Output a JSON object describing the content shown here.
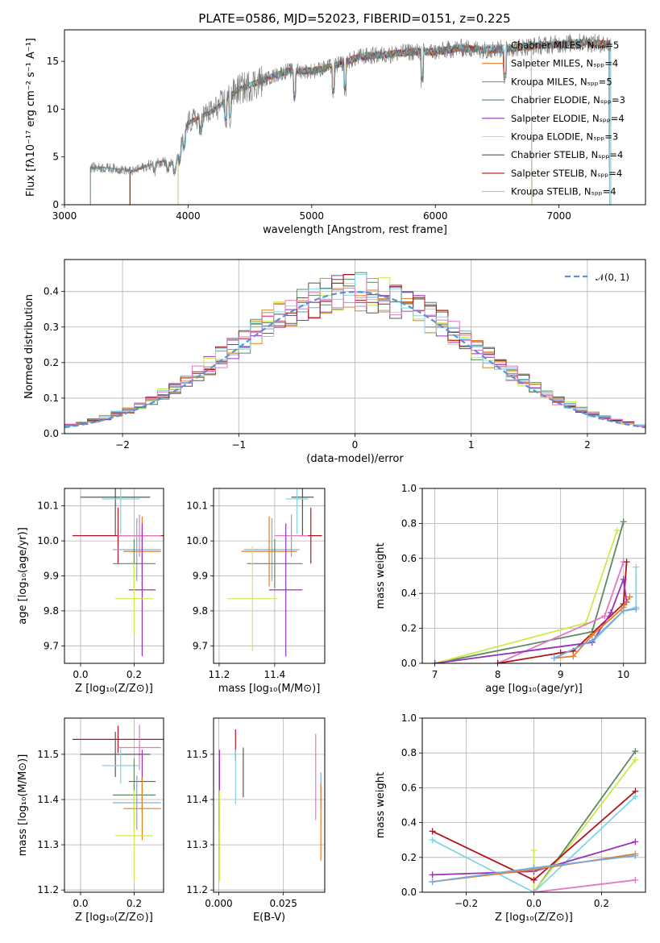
{
  "figure": {
    "title": "PLATE=0586, MJD=52023, FIBERID=0151, z=0.225"
  },
  "colors": {
    "Chabrier MILES": "#77aadd",
    "Salpeter MILES": "#e67e22",
    "Kroupa MILES": "#c8852a",
    "Chabrier ELODIE": "#5b8a63",
    "Salpeter ELODIE": "#9b30b9",
    "Kroupa ELODIE": "#cde94e",
    "Chabrier STELIB": "#555555",
    "Salpeter STELIB": "#b0151b",
    "Kroupa STELIB": "#7fd6e6",
    "extra": "#e377c2",
    "normal_curve": "#5b8fd9"
  },
  "chart_data": [
    {
      "id": "spectrum",
      "type": "line",
      "xlabel": "wavelength [Angstrom, rest frame]",
      "ylabel": "Flux [fλ10⁻¹⁷ erg cm⁻² s⁻¹ A⁻¹]",
      "xlim": [
        3000,
        7700
      ],
      "ylim": [
        0,
        18.3
      ],
      "xticks": [
        "3000",
        "4000",
        "5000",
        "6000",
        "7000"
      ],
      "yticks": [
        "0",
        "5",
        "10",
        "15"
      ],
      "grid": false,
      "legend_position": "right",
      "series": [
        {
          "name": "Chabrier MILES, Nₛₚₚ=5"
        },
        {
          "name": "Salpeter MILES, Nₛₚₚ=4"
        },
        {
          "name": "Kroupa MILES, Nₛₚₚ=5"
        },
        {
          "name": "Chabrier ELODIE, Nₛₚₚ=3"
        },
        {
          "name": "Salpeter ELODIE, Nₛₚₚ=4"
        },
        {
          "name": "Kroupa ELODIE, Nₛₚₚ=3"
        },
        {
          "name": "Chabrier STELIB, Nₛₚₚ=4"
        },
        {
          "name": "Salpeter STELIB, Nₛₚₚ=4"
        },
        {
          "name": "Kroupa STELIB, Nₛₚₚ=4"
        }
      ],
      "continuum": {
        "x": [
          3220,
          3400,
          3550,
          3700,
          3800,
          3900,
          3950,
          4000,
          4200,
          4400,
          4600,
          4800,
          5000,
          5200,
          5400,
          5600,
          5800,
          6000,
          6200,
          6400,
          6600,
          6800,
          7000,
          7200,
          7400,
          7500
        ],
        "y": [
          3.9,
          3.8,
          3.5,
          4.2,
          4.6,
          4.1,
          6.5,
          8.6,
          9.8,
          12.0,
          13.0,
          14.0,
          14.0,
          14.6,
          15.5,
          15.7,
          16.0,
          16.0,
          16.4,
          16.2,
          16.4,
          16.6,
          16.8,
          17.0,
          16.8,
          16.5
        ]
      },
      "spectrum_start": 3210,
      "spectrum_end": 7420
    },
    {
      "id": "residuals",
      "type": "line",
      "xlabel": "(data-model)/error",
      "ylabel": "Normed distribution",
      "xlim": [
        -2.5,
        2.5
      ],
      "ylim": [
        0,
        0.49
      ],
      "xticks": [
        "−2",
        "−1",
        "0",
        "1",
        "2"
      ],
      "yticks": [
        "0.0",
        "0.1",
        "0.2",
        "0.3",
        "0.4"
      ],
      "grid": true,
      "legend_position": "top-right",
      "legend": "𝒩(0, 1)",
      "bin_width": 0.1
    },
    {
      "id": "age-vs-Z",
      "type": "scatter",
      "xlabel": "Z [log₁₀(Z/Z⊙)]",
      "ylabel": "age  [log₁₀(age/yr)]",
      "xlim": [
        -0.06,
        0.31
      ],
      "ylim": [
        9.65,
        10.15
      ],
      "xticks": [
        "0.0",
        "0.2"
      ],
      "yticks": [
        "9.7",
        "9.8",
        "9.9",
        "10.0",
        "10.1"
      ],
      "grid": true,
      "points": [
        {
          "c": "Chabrier STELIB",
          "x": 0.13,
          "xe": 0.13,
          "y": 10.125,
          "ye": 0.11
        },
        {
          "c": "Kroupa STELIB",
          "x": 0.15,
          "xe": 0.07,
          "y": 10.12,
          "ye": 0.1
        },
        {
          "c": "Salpeter STELIB",
          "x": 0.14,
          "xe": 0.17,
          "y": 10.015,
          "ye": 0.08
        },
        {
          "c": "extra",
          "x": 0.22,
          "xe": 0.08,
          "y": 10.015,
          "ye": 0.06
        },
        {
          "c": "Chabrier MILES",
          "x": 0.21,
          "xe": 0.09,
          "y": 9.975,
          "ye": 0.09
        },
        {
          "c": "Salpeter MILES",
          "x": 0.23,
          "xe": 0.07,
          "y": 9.97,
          "ye": 0.1
        },
        {
          "c": "Chabrier ELODIE",
          "x": 0.2,
          "xe": 0.08,
          "y": 9.935,
          "ye": 0.07
        },
        {
          "c": "Salpeter ELODIE",
          "x": 0.23,
          "xe": 0.05,
          "y": 9.86,
          "ye": 0.19
        },
        {
          "c": "Kroupa ELODIE",
          "x": 0.2,
          "xe": 0.07,
          "y": 9.835,
          "ye": 0.1
        }
      ]
    },
    {
      "id": "age-vs-mass",
      "type": "scatter",
      "xlabel": "mass [log₁₀(M/M⊙)]",
      "ylabel": "",
      "xlim": [
        11.18,
        11.58
      ],
      "ylim": [
        9.65,
        10.15
      ],
      "xticks": [
        "11.2",
        "11.4"
      ],
      "yticks": [
        "9.7",
        "9.8",
        "9.9",
        "10.0",
        "10.1"
      ],
      "grid": true,
      "points": [
        {
          "c": "Chabrier STELIB",
          "x": 11.5,
          "xe": 0.04,
          "y": 10.125,
          "ye": 0.11
        },
        {
          "c": "Kroupa STELIB",
          "x": 11.48,
          "xe": 0.04,
          "y": 10.12,
          "ye": 0.1
        },
        {
          "c": "Salpeter STELIB",
          "x": 11.53,
          "xe": 0.04,
          "y": 10.015,
          "ye": 0.08
        },
        {
          "c": "extra",
          "x": 11.46,
          "xe": 0.06,
          "y": 10.015,
          "ye": 0.06
        },
        {
          "c": "Chabrier MILES",
          "x": 11.39,
          "xe": 0.1,
          "y": 9.975,
          "ye": 0.09
        },
        {
          "c": "Salpeter MILES",
          "x": 11.38,
          "xe": 0.1,
          "y": 9.97,
          "ye": 0.1
        },
        {
          "c": "Chabrier ELODIE",
          "x": 11.4,
          "xe": 0.1,
          "y": 9.935,
          "ye": 0.07
        },
        {
          "c": "Salpeter ELODIE",
          "x": 11.44,
          "xe": 0.06,
          "y": 9.86,
          "ye": 0.19
        },
        {
          "c": "Kroupa ELODIE",
          "x": 11.32,
          "xe": 0.09,
          "y": 9.835,
          "ye": 0.15
        }
      ]
    },
    {
      "id": "weight-vs-age",
      "type": "line",
      "xlabel": "age  [log₁₀(age/yr)]",
      "ylabel": "mass weight",
      "xlim": [
        6.8,
        10.35
      ],
      "ylim": [
        0,
        1.0
      ],
      "xticks": [
        "7",
        "8",
        "9",
        "10"
      ],
      "yticks": [
        "0.0",
        "0.2",
        "0.4",
        "0.6",
        "0.8",
        "1.0"
      ],
      "grid": true,
      "series": [
        {
          "c": "Chabrier ELODIE",
          "x": [
            7.0,
            9.5,
            10.0
          ],
          "y": [
            0.0,
            0.18,
            0.81
          ]
        },
        {
          "c": "Kroupa ELODIE",
          "x": [
            7.0,
            9.4,
            9.9
          ],
          "y": [
            0.0,
            0.23,
            0.76
          ]
        },
        {
          "c": "extra",
          "x": [
            8.0,
            9.7,
            10.0
          ],
          "y": [
            0.0,
            0.27,
            0.58
          ]
        },
        {
          "c": "Salpeter STELIB",
          "x": [
            8.0,
            9.0,
            9.2,
            10.0,
            10.05
          ],
          "y": [
            0.0,
            0.06,
            0.07,
            0.34,
            0.58
          ]
        },
        {
          "c": "Kroupa STELIB",
          "x": [
            7.0,
            9.5,
            10.0,
            10.2,
            10.2
          ],
          "y": [
            0.0,
            0.12,
            0.3,
            0.32,
            0.55
          ]
        },
        {
          "c": "Salpeter ELODIE",
          "x": [
            7.0,
            9.5,
            9.8,
            10.0,
            10.05
          ],
          "y": [
            0.0,
            0.12,
            0.29,
            0.48,
            0.35
          ]
        },
        {
          "c": "Salpeter MILES",
          "x": [
            8.9,
            9.2,
            9.5,
            10.0,
            10.1
          ],
          "y": [
            0.03,
            0.04,
            0.16,
            0.32,
            0.38
          ]
        },
        {
          "c": "Chabrier MILES",
          "x": [
            8.9,
            9.5,
            10.0,
            10.2
          ],
          "y": [
            0.03,
            0.13,
            0.3,
            0.31
          ]
        }
      ]
    },
    {
      "id": "mass-vs-Z",
      "type": "scatter",
      "xlabel": "Z [log₁₀(Z/Z⊙)]",
      "ylabel": "mass [log₁₀(M/M⊙)]",
      "xlim": [
        -0.06,
        0.31
      ],
      "ylim": [
        11.195,
        11.58
      ],
      "xticks": [
        "0.0",
        "0.2"
      ],
      "yticks": [
        "11.2",
        "11.3",
        "11.4",
        "11.5"
      ],
      "grid": true,
      "points": [
        {
          "c": "Salpeter STELIB",
          "x": 0.14,
          "xe": 0.17,
          "y": 11.533,
          "ye": 0.03
        },
        {
          "c": "extra",
          "x": 0.22,
          "xe": 0.08,
          "y": 11.515,
          "ye": 0.05
        },
        {
          "c": "Chabrier STELIB",
          "x": 0.13,
          "xe": 0.13,
          "y": 11.5,
          "ye": 0.05
        },
        {
          "c": "Kroupa STELIB",
          "x": 0.15,
          "xe": 0.07,
          "y": 11.475,
          "ye": 0.04
        },
        {
          "c": "Salpeter ELODIE",
          "x": 0.23,
          "xe": 0.05,
          "y": 11.44,
          "ye": 0.07
        },
        {
          "c": "Chabrier ELODIE",
          "x": 0.2,
          "xe": 0.08,
          "y": 11.41,
          "ye": 0.08
        },
        {
          "c": "Chabrier MILES",
          "x": 0.21,
          "xe": 0.09,
          "y": 11.393,
          "ye": 0.06
        },
        {
          "c": "Salpeter MILES",
          "x": 0.23,
          "xe": 0.07,
          "y": 11.38,
          "ye": 0.07
        },
        {
          "c": "Kroupa ELODIE",
          "x": 0.2,
          "xe": 0.07,
          "y": 11.32,
          "ye": 0.1
        }
      ]
    },
    {
      "id": "mass-vs-EBV",
      "type": "scatter",
      "xlabel": "E(B-V)",
      "ylabel": "",
      "xlim": [
        -0.002,
        0.041
      ],
      "ylim": [
        11.195,
        11.58
      ],
      "xticks": [
        "0.000",
        "0.025"
      ],
      "yticks": [
        "11.2",
        "11.3",
        "11.4",
        "11.5"
      ],
      "grid": true,
      "points": [
        {
          "c": "Salpeter STELIB",
          "x": 0.0065,
          "y": 11.52,
          "ye": 0.035
        },
        {
          "c": "Chabrier STELIB",
          "x": 0.0095,
          "y": 11.46,
          "ye": 0.055
        },
        {
          "c": "Kroupa STELIB",
          "x": 0.0065,
          "y": 11.45,
          "ye": 0.06
        },
        {
          "c": "Salpeter ELODIE",
          "x": 0.0003,
          "y": 11.42,
          "ye": 0.09
        },
        {
          "c": "Kroupa ELODIE",
          "x": 0.0003,
          "y": 11.32,
          "ye": 0.1
        },
        {
          "c": "extra",
          "x": 0.0375,
          "y": 11.45,
          "ye": 0.095
        },
        {
          "c": "Chabrier MILES",
          "x": 0.0395,
          "y": 11.42,
          "ye": 0.04
        },
        {
          "c": "Salpeter MILES",
          "x": 0.0395,
          "y": 11.35,
          "ye": 0.085
        }
      ]
    },
    {
      "id": "weight-vs-Z",
      "type": "line",
      "xlabel": "Z [log₁₀(Z/Z⊙)]",
      "ylabel": "mass weight",
      "xlim": [
        -0.33,
        0.33
      ],
      "ylim": [
        0,
        1.0
      ],
      "xticks": [
        "−0.2",
        "0.0",
        "0.2"
      ],
      "yticks": [
        "0.0",
        "0.2",
        "0.4",
        "0.6",
        "0.8",
        "1.0"
      ],
      "grid": true,
      "series": [
        {
          "c": "Chabrier ELODIE",
          "x": [
            0.0,
            0.3
          ],
          "y": [
            0.0,
            0.81
          ]
        },
        {
          "c": "Kroupa ELODIE",
          "x": [
            0.0,
            0.0,
            0.3
          ],
          "y": [
            0.24,
            0.0,
            0.76
          ]
        },
        {
          "c": "Salpeter STELIB",
          "x": [
            -0.3,
            0.0,
            0.3
          ],
          "y": [
            0.35,
            0.07,
            0.58
          ]
        },
        {
          "c": "Kroupa STELIB",
          "x": [
            -0.3,
            0.0,
            0.3
          ],
          "y": [
            0.3,
            0.0,
            0.55
          ]
        },
        {
          "c": "Salpeter ELODIE",
          "x": [
            -0.3,
            0.0,
            0.3
          ],
          "y": [
            0.1,
            0.12,
            0.29
          ]
        },
        {
          "c": "extra",
          "x": [
            0.0,
            0.3
          ],
          "y": [
            0.0,
            0.07
          ]
        },
        {
          "c": "Salpeter MILES",
          "x": [
            -0.3,
            0.0,
            0.3
          ],
          "y": [
            0.06,
            0.13,
            0.22
          ]
        },
        {
          "c": "Chabrier MILES",
          "x": [
            -0.3,
            0.0,
            0.3
          ],
          "y": [
            0.06,
            0.14,
            0.21
          ]
        }
      ]
    }
  ]
}
